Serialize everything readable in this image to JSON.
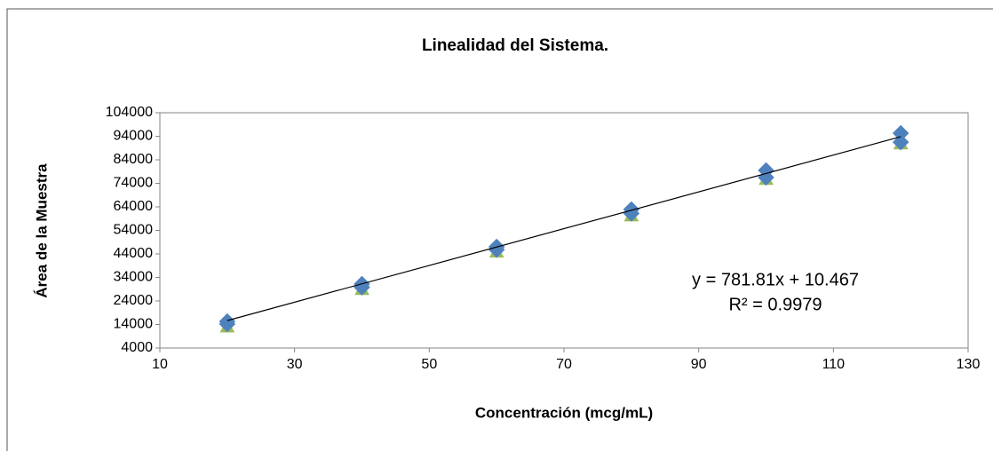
{
  "chart_data": {
    "type": "scatter",
    "title": "Linealidad del Sistema.",
    "x_label": "Concentración (mcg/mL)",
    "y_label": "Área de la Muestra",
    "x": [
      20,
      40,
      60,
      80,
      100,
      120
    ],
    "series": [
      {
        "color": "#9bbb59",
        "marker": "triangle",
        "values": [
          13000,
          28900,
          44800,
          60200,
          75700,
          90800
        ]
      },
      {
        "color": "#4f81bd",
        "marker": "diamond",
        "values": [
          14200,
          29800,
          45800,
          61200,
          76500,
          91500
        ]
      },
      {
        "color": "#4f81bd",
        "marker": "diamond",
        "values": [
          15300,
          31200,
          47000,
          62900,
          79500,
          95300
        ]
      }
    ],
    "trendline": {
      "slope": 781.81,
      "intercept": 10.467,
      "color": "#000000",
      "equation": "y = 781.81x + 10.467",
      "r2": "R² = 0.9979"
    },
    "xlim": [
      10,
      130
    ],
    "xticks": [
      10,
      30,
      50,
      70,
      90,
      110,
      130
    ],
    "ylim": [
      4000,
      104000
    ],
    "yticks": [
      4000,
      14000,
      24000,
      34000,
      44000,
      54000,
      64000,
      74000,
      84000,
      94000,
      104000
    ],
    "grid": false
  }
}
